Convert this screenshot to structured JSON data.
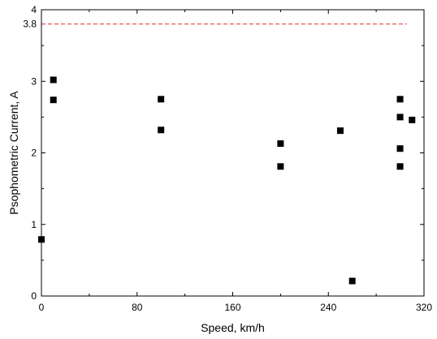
{
  "chart_data": {
    "type": "scatter",
    "title": "",
    "xlabel": "Speed, km/h",
    "ylabel": "Psophometric Current, A",
    "xlim": [
      0,
      320
    ],
    "ylim": [
      0,
      4
    ],
    "x_ticks": [
      0,
      80,
      160,
      240,
      320
    ],
    "x_tick_labels": [
      "0",
      "80",
      "160",
      "240",
      "320"
    ],
    "y_ticks": [
      0,
      1,
      2,
      3,
      4
    ],
    "y_tick_labels": [
      "0",
      "1",
      "2",
      "3",
      "4"
    ],
    "grid": false,
    "legend": "none",
    "reference_line": {
      "y": 3.8,
      "label": "3.8",
      "style": "dashed",
      "color": "#e03030"
    },
    "series": [
      {
        "marker": "square",
        "color": "#000000",
        "points": [
          {
            "x": 0,
            "y": 0.79
          },
          {
            "x": 10,
            "y": 3.02
          },
          {
            "x": 10,
            "y": 2.74
          },
          {
            "x": 100,
            "y": 2.75
          },
          {
            "x": 100,
            "y": 2.32
          },
          {
            "x": 200,
            "y": 2.13
          },
          {
            "x": 200,
            "y": 1.81
          },
          {
            "x": 250,
            "y": 2.31
          },
          {
            "x": 260,
            "y": 0.21
          },
          {
            "x": 300,
            "y": 2.75
          },
          {
            "x": 300,
            "y": 2.5
          },
          {
            "x": 300,
            "y": 2.06
          },
          {
            "x": 300,
            "y": 1.81
          },
          {
            "x": 310,
            "y": 2.46
          }
        ]
      }
    ]
  }
}
